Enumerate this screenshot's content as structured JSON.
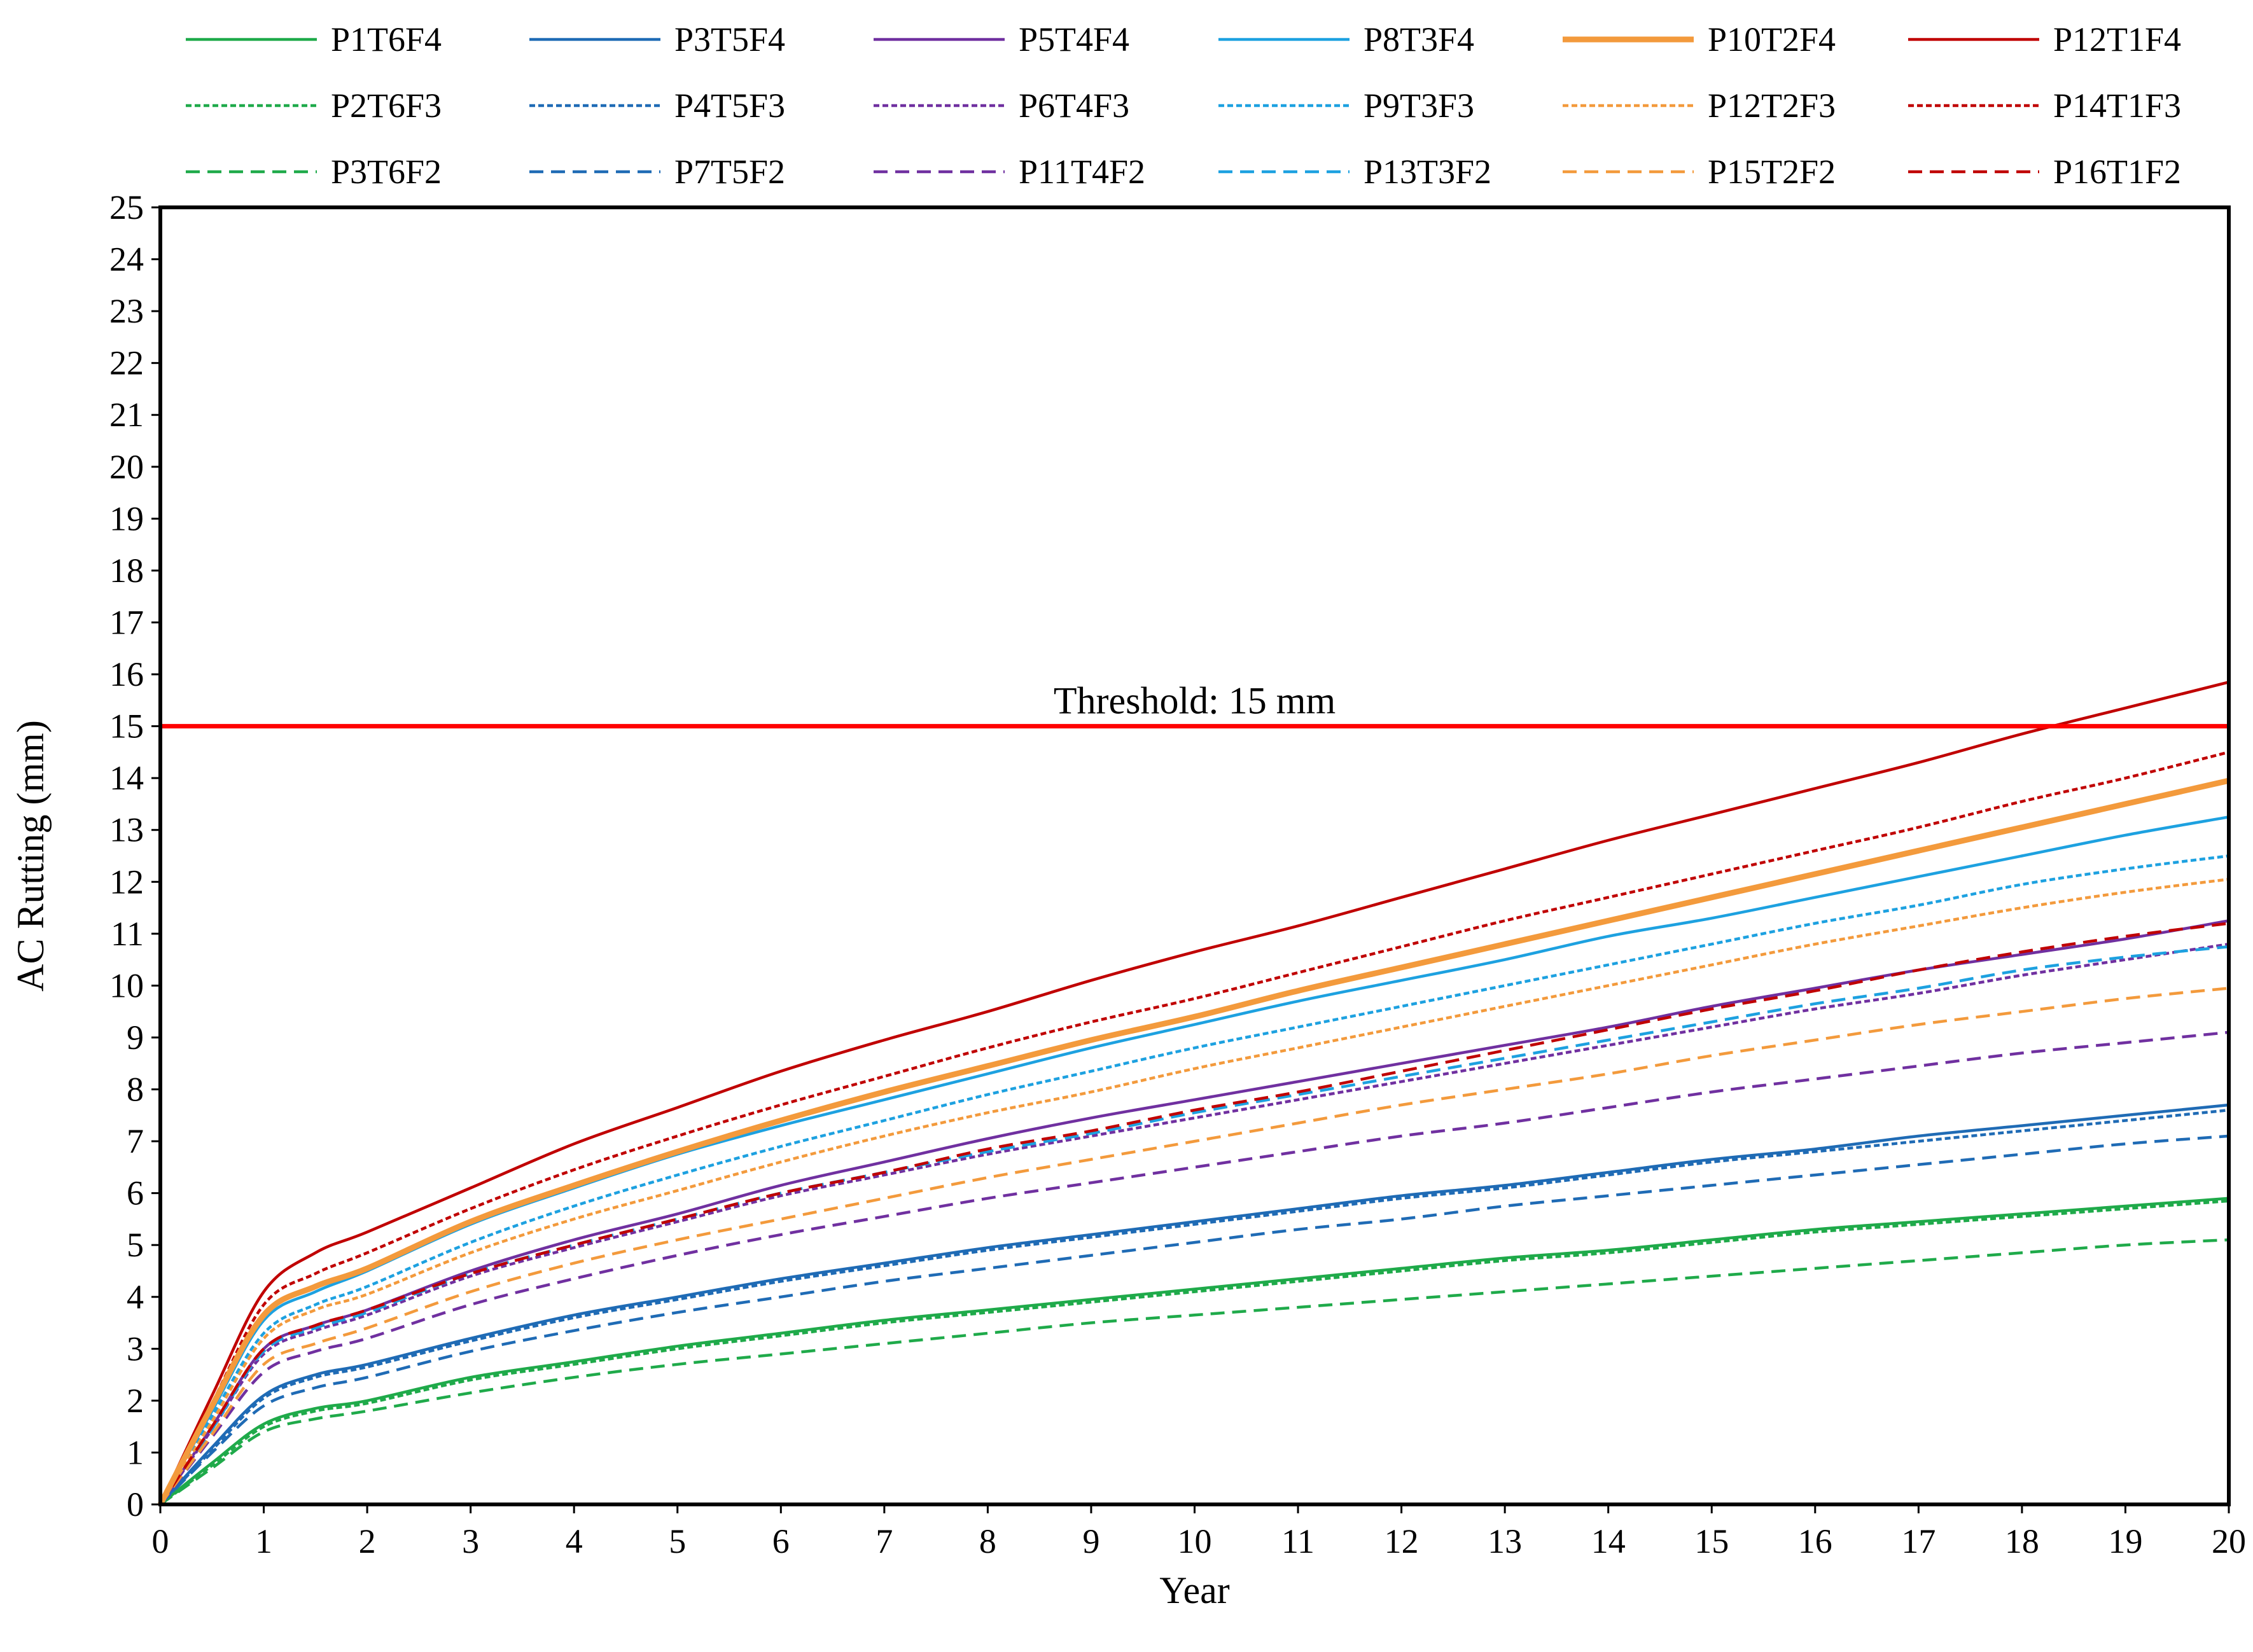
{
  "chart_data": {
    "type": "line",
    "title": "",
    "xlabel": "Year",
    "ylabel": "AC Rutting (mm)",
    "xlim": [
      0,
      20
    ],
    "ylim": [
      0,
      25
    ],
    "x_ticks": [
      0,
      1,
      2,
      3,
      4,
      5,
      6,
      7,
      8,
      9,
      10,
      11,
      12,
      13,
      14,
      15,
      16,
      17,
      18,
      19,
      20
    ],
    "y_ticks": [
      0,
      1,
      2,
      3,
      4,
      5,
      6,
      7,
      8,
      9,
      10,
      11,
      12,
      13,
      14,
      15,
      16,
      17,
      18,
      19,
      20,
      21,
      22,
      23,
      24,
      25
    ],
    "grid": false,
    "legend_position": "top",
    "x": [
      0,
      0.5,
      1,
      1.5,
      2,
      3,
      4,
      5,
      6,
      7,
      8,
      9,
      10,
      11,
      12,
      13,
      14,
      15,
      16,
      17,
      18,
      19,
      20
    ],
    "threshold": {
      "value": 15,
      "label": "Threshold: 15 mm",
      "color": "#ff0000"
    },
    "series": [
      {
        "name": "P1T6F4",
        "color": "#1faa4a",
        "style": "solid",
        "values": [
          0,
          0.8,
          1.55,
          1.85,
          2.0,
          2.45,
          2.75,
          3.05,
          3.3,
          3.55,
          3.75,
          3.95,
          4.15,
          4.35,
          4.55,
          4.75,
          4.9,
          5.1,
          5.3,
          5.45,
          5.6,
          5.75,
          5.9
        ]
      },
      {
        "name": "P3T5F4",
        "color": "#1f6bb5",
        "style": "solid",
        "values": [
          0,
          1.1,
          2.1,
          2.5,
          2.7,
          3.2,
          3.65,
          4.0,
          4.35,
          4.65,
          4.95,
          5.2,
          5.45,
          5.7,
          5.95,
          6.15,
          6.4,
          6.65,
          6.85,
          7.1,
          7.3,
          7.5,
          7.7
        ]
      },
      {
        "name": "P5T4F4",
        "color": "#7030a0",
        "style": "solid",
        "values": [
          0,
          1.5,
          3.0,
          3.45,
          3.75,
          4.5,
          5.1,
          5.6,
          6.15,
          6.6,
          7.05,
          7.45,
          7.8,
          8.15,
          8.5,
          8.85,
          9.2,
          9.6,
          9.95,
          10.3,
          10.6,
          10.9,
          11.25
        ]
      },
      {
        "name": "P8T3F4",
        "color": "#1da1e0",
        "style": "solid",
        "values": [
          0,
          1.8,
          3.55,
          4.1,
          4.5,
          5.4,
          6.1,
          6.75,
          7.3,
          7.8,
          8.3,
          8.8,
          9.25,
          9.7,
          10.1,
          10.5,
          10.95,
          11.3,
          11.7,
          12.1,
          12.5,
          12.9,
          13.25
        ]
      },
      {
        "name": "P10T2F4",
        "color": "#f39a3c",
        "style": "solid-thick",
        "values": [
          0,
          1.9,
          3.65,
          4.2,
          4.55,
          5.45,
          6.15,
          6.8,
          7.4,
          7.95,
          8.45,
          8.95,
          9.4,
          9.9,
          10.35,
          10.8,
          11.25,
          11.7,
          12.15,
          12.6,
          13.05,
          13.5,
          13.95
        ]
      },
      {
        "name": "P12T1F4",
        "color": "#c00000",
        "style": "solid",
        "values": [
          0,
          2.1,
          4.1,
          4.85,
          5.25,
          6.1,
          6.95,
          7.65,
          8.35,
          8.95,
          9.5,
          10.1,
          10.65,
          11.15,
          11.7,
          12.25,
          12.8,
          13.3,
          13.8,
          14.3,
          14.85,
          15.35,
          15.85
        ]
      },
      {
        "name": "P2T6F3",
        "color": "#1faa4a",
        "style": "dotted",
        "values": [
          0,
          0.75,
          1.5,
          1.8,
          1.95,
          2.4,
          2.7,
          3.0,
          3.25,
          3.5,
          3.7,
          3.9,
          4.1,
          4.3,
          4.5,
          4.7,
          4.85,
          5.05,
          5.25,
          5.4,
          5.55,
          5.7,
          5.85
        ]
      },
      {
        "name": "P4T5F3",
        "color": "#1f6bb5",
        "style": "dotted",
        "values": [
          0,
          1.05,
          2.05,
          2.45,
          2.65,
          3.15,
          3.6,
          3.95,
          4.3,
          4.6,
          4.9,
          5.15,
          5.4,
          5.65,
          5.9,
          6.1,
          6.35,
          6.6,
          6.8,
          7.0,
          7.2,
          7.4,
          7.6
        ]
      },
      {
        "name": "P6T4F3",
        "color": "#7030a0",
        "style": "dotted",
        "values": [
          0,
          1.45,
          2.9,
          3.35,
          3.65,
          4.4,
          4.95,
          5.45,
          5.95,
          6.35,
          6.75,
          7.1,
          7.45,
          7.8,
          8.15,
          8.5,
          8.85,
          9.2,
          9.55,
          9.85,
          10.2,
          10.5,
          10.8
        ]
      },
      {
        "name": "P9T3F3",
        "color": "#1da1e0",
        "style": "dotted",
        "values": [
          0,
          1.7,
          3.3,
          3.85,
          4.2,
          5.05,
          5.75,
          6.35,
          6.9,
          7.4,
          7.9,
          8.35,
          8.8,
          9.2,
          9.6,
          10.0,
          10.4,
          10.8,
          11.2,
          11.55,
          11.95,
          12.25,
          12.5
        ]
      },
      {
        "name": "P12T2F3",
        "color": "#f39a3c",
        "style": "dotted",
        "values": [
          0,
          1.6,
          3.2,
          3.75,
          4.05,
          4.85,
          5.5,
          6.05,
          6.6,
          7.1,
          7.55,
          7.95,
          8.4,
          8.8,
          9.2,
          9.6,
          10.0,
          10.4,
          10.8,
          11.15,
          11.5,
          11.8,
          12.05
        ]
      },
      {
        "name": "P14T1F3",
        "color": "#c00000",
        "style": "dotted",
        "values": [
          0,
          1.95,
          3.85,
          4.45,
          4.85,
          5.7,
          6.45,
          7.1,
          7.7,
          8.25,
          8.8,
          9.3,
          9.75,
          10.25,
          10.75,
          11.25,
          11.7,
          12.15,
          12.6,
          13.05,
          13.55,
          14.0,
          14.5
        ]
      },
      {
        "name": "P3T6F2",
        "color": "#1faa4a",
        "style": "dashed",
        "values": [
          0,
          0.7,
          1.4,
          1.65,
          1.8,
          2.15,
          2.45,
          2.7,
          2.9,
          3.1,
          3.3,
          3.5,
          3.65,
          3.8,
          3.95,
          4.1,
          4.25,
          4.4,
          4.55,
          4.7,
          4.85,
          5.0,
          5.1
        ]
      },
      {
        "name": "P7T5F2",
        "color": "#1f6bb5",
        "style": "dashed",
        "values": [
          0,
          1.0,
          1.9,
          2.25,
          2.45,
          2.95,
          3.35,
          3.7,
          4.0,
          4.3,
          4.55,
          4.8,
          5.05,
          5.3,
          5.5,
          5.75,
          5.95,
          6.15,
          6.35,
          6.55,
          6.75,
          6.95,
          7.1
        ]
      },
      {
        "name": "P11T4F2",
        "color": "#7030a0",
        "style": "dashed",
        "values": [
          0,
          1.3,
          2.55,
          2.95,
          3.2,
          3.85,
          4.35,
          4.8,
          5.2,
          5.55,
          5.9,
          6.2,
          6.5,
          6.8,
          7.1,
          7.35,
          7.65,
          7.95,
          8.2,
          8.45,
          8.7,
          8.9,
          9.1
        ]
      },
      {
        "name": "P13T3F2",
        "color": "#1da1e0",
        "style": "dashed",
        "values": [
          0,
          1.45,
          2.95,
          3.4,
          3.7,
          4.45,
          5.0,
          5.5,
          6.0,
          6.4,
          6.8,
          7.15,
          7.55,
          7.9,
          8.25,
          8.6,
          8.95,
          9.3,
          9.65,
          9.95,
          10.3,
          10.55,
          10.75
        ]
      },
      {
        "name": "P15T2F2",
        "color": "#f39a3c",
        "style": "dashed",
        "values": [
          0,
          1.35,
          2.7,
          3.1,
          3.4,
          4.1,
          4.65,
          5.1,
          5.5,
          5.9,
          6.3,
          6.65,
          7.0,
          7.35,
          7.7,
          8.0,
          8.3,
          8.65,
          8.95,
          9.25,
          9.5,
          9.75,
          9.95
        ]
      },
      {
        "name": "P16T1F2",
        "color": "#c00000",
        "style": "dashed",
        "values": [
          0,
          1.5,
          3.0,
          3.45,
          3.75,
          4.45,
          5.0,
          5.5,
          6.0,
          6.4,
          6.85,
          7.2,
          7.6,
          7.95,
          8.35,
          8.75,
          9.15,
          9.55,
          9.9,
          10.3,
          10.65,
          10.95,
          11.2
        ]
      }
    ]
  }
}
